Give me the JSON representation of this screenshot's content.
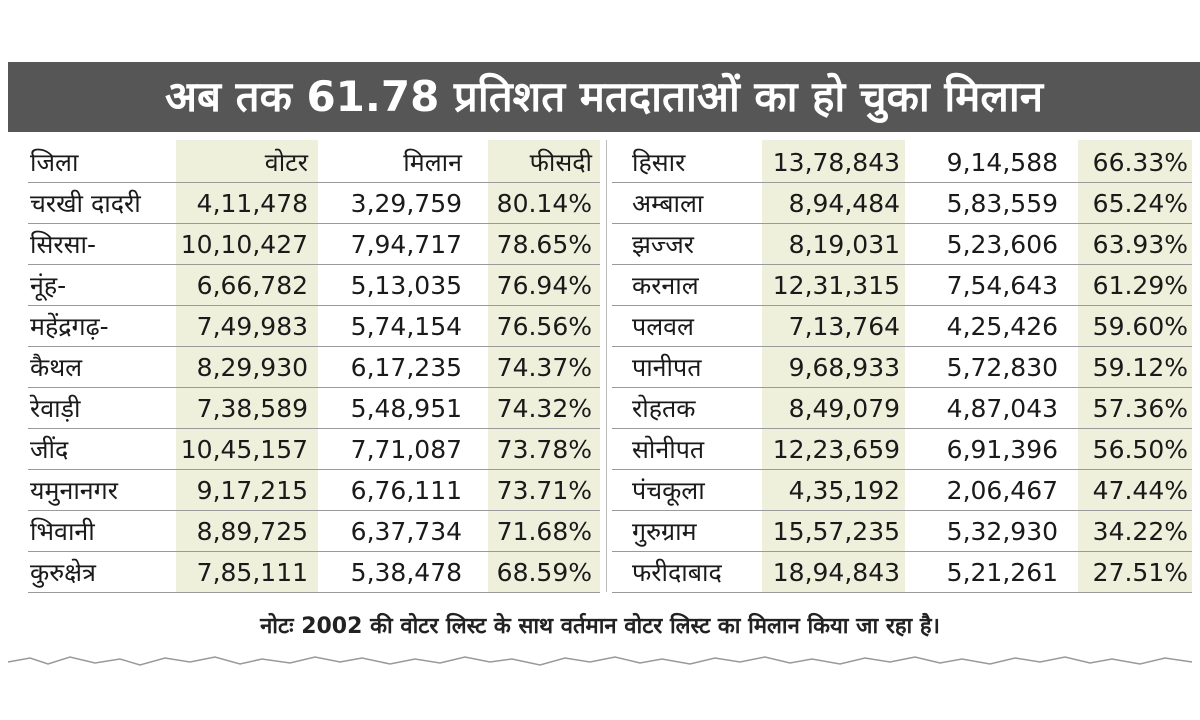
{
  "title": "अब तक 61.78 प्रतिशत मतदाताओं का हो चुका मिलान",
  "table": {
    "header": [
      "जिला",
      "वोटर",
      "मिलान",
      "फीसदी"
    ],
    "left_rows": [
      [
        "चरखी दादरी",
        "4,11,478",
        "3,29,759",
        "80.14%"
      ],
      [
        "सिरसा-",
        "10,10,427",
        "7,94,717",
        "78.65%"
      ],
      [
        "नूंह-",
        "6,66,782",
        "5,13,035",
        "76.94%"
      ],
      [
        "महेंद्रगढ़-",
        "7,49,983",
        "5,74,154",
        "76.56%"
      ],
      [
        "कैथल",
        "8,29,930",
        "6,17,235",
        "74.37%"
      ],
      [
        "रेवाड़ी",
        "7,38,589",
        "5,48,951",
        "74.32%"
      ],
      [
        "जींद",
        "10,45,157",
        "7,71,087",
        "73.78%"
      ],
      [
        "यमुनानगर",
        "9,17,215",
        "6,76,111",
        "73.71%"
      ],
      [
        "भिवानी",
        "8,89,725",
        "6,37,734",
        "71.68%"
      ],
      [
        "कुरुक्षेत्र",
        "7,85,111",
        "5,38,478",
        "68.59%"
      ]
    ],
    "right_rows": [
      [
        "हिसार",
        "13,78,843",
        "9,14,588",
        "66.33%"
      ],
      [
        "अम्बाला",
        "8,94,484",
        "5,83,559",
        "65.24%"
      ],
      [
        "झज्जर",
        "8,19,031",
        "5,23,606",
        "63.93%"
      ],
      [
        "करनाल",
        "12,31,315",
        "7,54,643",
        "61.29%"
      ],
      [
        "पलवल",
        "7,13,764",
        "4,25,426",
        "59.60%"
      ],
      [
        "पानीपत",
        "9,68,933",
        "5,72,830",
        "59.12%"
      ],
      [
        "रोहतक",
        "8,49,079",
        "4,87,043",
        "57.36%"
      ],
      [
        "सोनीपत",
        "12,23,659",
        "6,91,396",
        "56.50%"
      ],
      [
        "पंचकूला",
        "4,35,192",
        "2,06,467",
        "47.44%"
      ],
      [
        "गुरुग्राम",
        "15,57,235",
        "5,32,930",
        "34.22%"
      ],
      [
        "फरीदाबाद",
        "18,94,843",
        "5,21,261",
        "27.51%"
      ]
    ]
  },
  "note": "नोटः 2002 की वोटर लिस्ट के साथ वर्तमान वोटर लिस्ट का मिलान किया जा रहा है।"
}
